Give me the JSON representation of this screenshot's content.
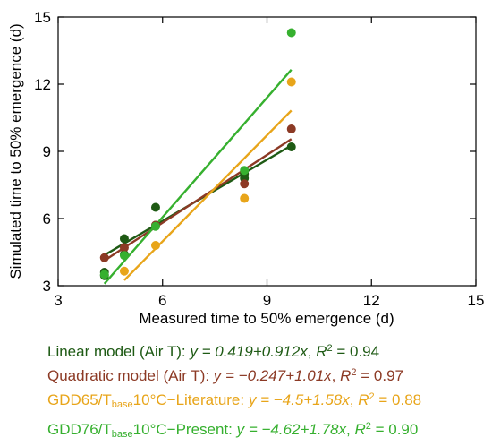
{
  "chart_data": {
    "type": "scatter",
    "xlabel": "Measured time to 50% emergence (d)",
    "ylabel": "Simulated time to 50% emergence (d)",
    "xlim": [
      3,
      15
    ],
    "ylim": [
      3,
      15
    ],
    "xticks": [
      3,
      6,
      9,
      12,
      15
    ],
    "yticks": [
      3,
      6,
      9,
      12,
      15
    ],
    "grid": false,
    "legend_position": "below",
    "series": [
      {
        "name": "Linear model (Air T)",
        "color": "#1e5a14",
        "points": [
          [
            4.33,
            3.6
          ],
          [
            4.33,
            3.45
          ],
          [
            4.9,
            5.1
          ],
          [
            4.9,
            4.4
          ],
          [
            5.8,
            6.5
          ],
          [
            5.8,
            5.7
          ],
          [
            8.35,
            8.0
          ],
          [
            8.35,
            7.8
          ],
          [
            9.7,
            9.2
          ]
        ],
        "fit": {
          "intercept": 0.419,
          "slope": 0.912,
          "x": [
            4.33,
            9.7
          ]
        },
        "legend": {
          "prefix": "Linear model (Air T): ",
          "eq": "y = 0.419+0.912x",
          "r2": " = 0.94"
        }
      },
      {
        "name": "Quadratic model (Air T)",
        "color": "#8c3a25",
        "points": [
          [
            4.33,
            4.25
          ],
          [
            4.9,
            4.7
          ],
          [
            5.8,
            5.7
          ],
          [
            8.35,
            7.55
          ],
          [
            9.7,
            10.0
          ]
        ],
        "fit": {
          "intercept": -0.247,
          "slope": 1.01,
          "x": [
            4.33,
            9.7
          ]
        },
        "legend": {
          "prefix": "Quadratic model (Air T): ",
          "eq": "y = −0.247+1.01x",
          "r2": " = 0.97"
        }
      },
      {
        "name": "GDD65/Tbase10°C−Literature",
        "color": "#e8a51a",
        "points": [
          [
            4.9,
            3.65
          ],
          [
            5.8,
            4.8
          ],
          [
            8.35,
            6.9
          ],
          [
            9.7,
            12.1
          ]
        ],
        "fit": {
          "intercept": -4.5,
          "slope": 1.58,
          "x": [
            4.9,
            9.7
          ]
        },
        "legend": {
          "prefix_a": "GDD65/T",
          "sub": "base",
          "prefix_b": "10°C−Literature: ",
          "eq": "y = −4.5+1.58x",
          "r2": " = 0.88"
        }
      },
      {
        "name": "GDD76/Tbase10°C−Present",
        "color": "#36b02f",
        "points": [
          [
            4.33,
            3.5
          ],
          [
            4.9,
            4.35
          ],
          [
            5.8,
            5.65
          ],
          [
            8.35,
            8.15
          ],
          [
            9.7,
            14.3
          ]
        ],
        "fit": {
          "intercept": -4.62,
          "slope": 1.78,
          "x": [
            4.33,
            9.7
          ]
        },
        "legend": {
          "prefix_a": "GDD76/T",
          "sub": "base",
          "prefix_b": "10°C−Present: ",
          "eq": "y = −4.62+1.78x",
          "r2": " = 0.90"
        }
      }
    ],
    "r2_label": "R",
    "r2_sup": "2"
  }
}
